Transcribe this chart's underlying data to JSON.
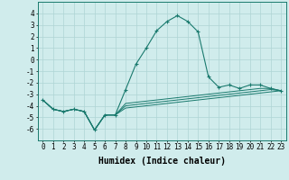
{
  "xlabel": "Humidex (Indice chaleur)",
  "x_values": [
    0,
    1,
    2,
    3,
    4,
    5,
    6,
    7,
    8,
    9,
    10,
    11,
    12,
    13,
    14,
    15,
    16,
    17,
    18,
    19,
    20,
    21,
    22,
    23
  ],
  "line1_y": [
    -3.5,
    -4.3,
    -4.5,
    -4.3,
    -4.5,
    -6.1,
    -4.8,
    -4.8,
    -2.6,
    -0.4,
    1.0,
    2.5,
    3.3,
    3.8,
    3.3,
    2.4,
    -1.5,
    -2.4,
    -2.2,
    -2.5,
    -2.2,
    -2.2,
    -2.5,
    -2.7
  ],
  "line2_y": [
    -3.5,
    -4.3,
    -4.5,
    -4.3,
    -4.5,
    -6.1,
    -4.8,
    -4.8,
    -3.8,
    -3.7,
    -3.6,
    -3.5,
    -3.4,
    -3.3,
    -3.2,
    -3.1,
    -3.0,
    -2.9,
    -2.8,
    -2.7,
    -2.6,
    -2.5,
    -2.5,
    -2.7
  ],
  "line3_y": [
    -3.5,
    -4.3,
    -4.5,
    -4.3,
    -4.5,
    -6.1,
    -4.8,
    -4.8,
    -4.0,
    -3.9,
    -3.8,
    -3.7,
    -3.6,
    -3.5,
    -3.4,
    -3.3,
    -3.2,
    -3.1,
    -3.0,
    -2.9,
    -2.8,
    -2.7,
    -2.6,
    -2.7
  ],
  "line4_y": [
    -3.5,
    -4.3,
    -4.5,
    -4.3,
    -4.5,
    -6.1,
    -4.8,
    -4.8,
    -4.2,
    -4.1,
    -4.0,
    -3.9,
    -3.8,
    -3.7,
    -3.6,
    -3.5,
    -3.4,
    -3.3,
    -3.2,
    -3.1,
    -3.0,
    -2.9,
    -2.8,
    -2.7
  ],
  "line_color": "#1a7a6e",
  "bg_color": "#d0ecec",
  "grid_color": "#aed4d4",
  "ylim": [
    -7,
    5
  ],
  "yticks": [
    -6,
    -5,
    -4,
    -3,
    -2,
    -1,
    0,
    1,
    2,
    3,
    4
  ],
  "xticks": [
    0,
    1,
    2,
    3,
    4,
    5,
    6,
    7,
    8,
    9,
    10,
    11,
    12,
    13,
    14,
    15,
    16,
    17,
    18,
    19,
    20,
    21,
    22,
    23
  ],
  "tick_fontsize": 5.5,
  "xlabel_fontsize": 7
}
